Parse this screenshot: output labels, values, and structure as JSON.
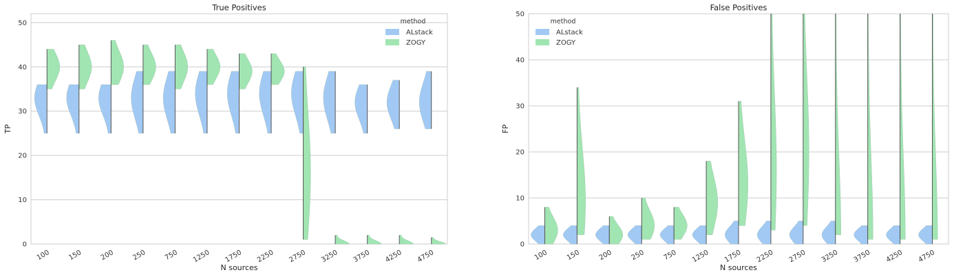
{
  "chart_data": [
    {
      "type": "violin",
      "title": "True Positives",
      "xlabel": "N sources",
      "ylabel": "TP",
      "categories": [
        "100",
        "150",
        "200",
        "250",
        "750",
        "1250",
        "1750",
        "2250",
        "2750",
        "3250",
        "3750",
        "4250",
        "4750"
      ],
      "ylim": [
        0,
        52
      ],
      "yticks": [
        0,
        10,
        20,
        30,
        40,
        50
      ],
      "grid": true,
      "legend": {
        "title": "method",
        "placement": "top-right"
      },
      "series": [
        {
          "name": "ALstack",
          "color": "#a1c9f4",
          "side": "left",
          "values": [
            {
              "min": 25,
              "max": 36,
              "median": 33
            },
            {
              "min": 25,
              "max": 36,
              "median": 33
            },
            {
              "min": 25,
              "max": 36,
              "median": 33
            },
            {
              "min": 25,
              "max": 39,
              "median": 33
            },
            {
              "min": 25,
              "max": 39,
              "median": 33
            },
            {
              "min": 25,
              "max": 39,
              "median": 34
            },
            {
              "min": 25,
              "max": 39,
              "median": 34
            },
            {
              "min": 25,
              "max": 39,
              "median": 34
            },
            {
              "min": 25,
              "max": 39,
              "median": 34
            },
            {
              "min": 25,
              "max": 39,
              "median": 33
            },
            {
              "min": 25,
              "max": 36,
              "median": 32
            },
            {
              "min": 26,
              "max": 37,
              "median": 32
            },
            {
              "min": 26,
              "max": 39,
              "median": 32
            }
          ]
        },
        {
          "name": "ZOGY",
          "color": "#a1e5b2",
          "side": "right",
          "values": [
            {
              "min": 35,
              "max": 44,
              "median": 40
            },
            {
              "min": 35,
              "max": 45,
              "median": 40
            },
            {
              "min": 36,
              "max": 46,
              "median": 40
            },
            {
              "min": 36,
              "max": 45,
              "median": 40
            },
            {
              "min": 35,
              "max": 45,
              "median": 40
            },
            {
              "min": 36,
              "max": 44,
              "median": 40
            },
            {
              "min": 35,
              "max": 43,
              "median": 39
            },
            {
              "min": 36,
              "max": 43,
              "median": 39
            },
            {
              "min": 1,
              "max": 40,
              "median": 16
            },
            {
              "min": 0,
              "max": 2,
              "median": 0
            },
            {
              "min": 0,
              "max": 2,
              "median": 0
            },
            {
              "min": 0,
              "max": 2,
              "median": 0
            },
            {
              "min": 0,
              "max": 1.5,
              "median": 0
            }
          ]
        }
      ]
    },
    {
      "type": "violin",
      "title": "False Positives",
      "xlabel": "N sources",
      "ylabel": "FP",
      "categories": [
        "100",
        "150",
        "200",
        "250",
        "750",
        "1250",
        "1750",
        "2250",
        "2750",
        "3250",
        "3750",
        "4250",
        "4750"
      ],
      "ylim": [
        0,
        50
      ],
      "yticks": [
        0,
        10,
        20,
        30,
        40,
        50
      ],
      "grid": true,
      "legend": {
        "title": "method",
        "placement": "top-left"
      },
      "series": [
        {
          "name": "ALstack",
          "color": "#a1c9f4",
          "side": "left",
          "values": [
            {
              "min": 0,
              "max": 4,
              "median": 2
            },
            {
              "min": 0,
              "max": 4,
              "median": 2
            },
            {
              "min": 0,
              "max": 4,
              "median": 2
            },
            {
              "min": 0,
              "max": 4,
              "median": 2
            },
            {
              "min": 0,
              "max": 4,
              "median": 2
            },
            {
              "min": 0,
              "max": 4,
              "median": 2
            },
            {
              "min": 0,
              "max": 5,
              "median": 2
            },
            {
              "min": 0,
              "max": 5,
              "median": 2
            },
            {
              "min": 0,
              "max": 5,
              "median": 2
            },
            {
              "min": 0,
              "max": 5,
              "median": 2
            },
            {
              "min": 0,
              "max": 4,
              "median": 2
            },
            {
              "min": 0,
              "max": 4,
              "median": 2
            },
            {
              "min": 0,
              "max": 4,
              "median": 2
            }
          ]
        },
        {
          "name": "ZOGY",
          "color": "#a1e5b2",
          "side": "right",
          "values": [
            {
              "min": 0,
              "max": 8,
              "median": 3
            },
            {
              "min": 2,
              "max": 34,
              "median": 9
            },
            {
              "min": 0,
              "max": 6,
              "median": 2
            },
            {
              "min": 1,
              "max": 10,
              "median": 4
            },
            {
              "min": 1,
              "max": 8,
              "median": 4
            },
            {
              "min": 2,
              "max": 18,
              "median": 9
            },
            {
              "min": 4,
              "max": 31,
              "median": 13
            },
            {
              "min": 3,
              "max": 50,
              "median": 16
            },
            {
              "min": 4,
              "max": 50,
              "median": 20
            },
            {
              "min": 2,
              "max": 50,
              "median": 2
            },
            {
              "min": 1,
              "max": 50,
              "median": 1
            },
            {
              "min": 1,
              "max": 50,
              "median": 1
            },
            {
              "min": 1,
              "max": 50,
              "median": 1
            }
          ]
        }
      ]
    }
  ]
}
